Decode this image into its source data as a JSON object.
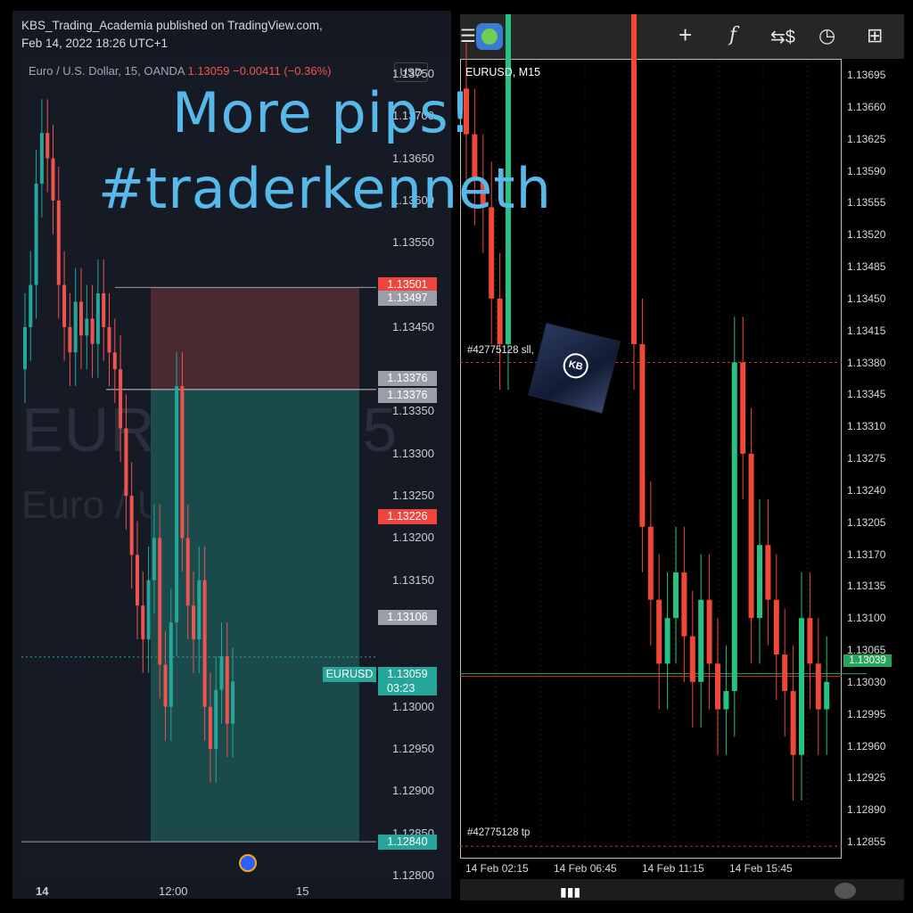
{
  "left_panel": {
    "header": {
      "line1": "KBS_Trading_Academia published on TradingView.com,",
      "line2": "Feb 14, 2022 18:26 UTC+1"
    },
    "symbol_line": {
      "name": "Euro / U.S. Dollar, 15, OANDA",
      "price": "1.13059",
      "change": "−0.00411 (−0.36%)"
    },
    "currency_button": "USD",
    "watermark": {
      "main": "EURUSD, 15",
      "sub": "Euro / U.S. Dollar"
    },
    "price_axis": [
      "1.13750",
      "1.13700",
      "1.13650",
      "1.13600",
      "1.13550",
      "1.13450",
      "1.13350",
      "1.13300",
      "1.13250",
      "1.13200",
      "1.13150",
      "1.13000",
      "1.12950",
      "1.12900",
      "1.12850",
      "1.12800"
    ],
    "price_tags": [
      {
        "label": "1.13501",
        "color": "#f0443f"
      },
      {
        "label": "1.13497",
        "color": "#9a9ea8"
      },
      {
        "label": "1.13376",
        "color": "#9a9ea8"
      },
      {
        "label": "1.13376",
        "color": "#9a9ea8"
      },
      {
        "label": "1.13226",
        "color": "#f0443f"
      },
      {
        "label": "1.13106",
        "color": "#9a9ea8"
      },
      {
        "label": "1.12840",
        "color": "#26a69a"
      }
    ],
    "current_tag": {
      "symbol": "EURUSD",
      "price": "1.13059",
      "countdown": "03:23"
    },
    "time_axis": [
      "14",
      "12:00",
      "15"
    ]
  },
  "overlay_text": {
    "line1": "More pips!",
    "line2": "#traderkenneth"
  },
  "right_panel": {
    "symbol": "EURUSD, M15",
    "price_axis": [
      "1.13695",
      "1.13660",
      "1.13625",
      "1.13590",
      "1.13555",
      "1.13520",
      "1.13485",
      "1.13450",
      "1.13415",
      "1.13380",
      "1.13345",
      "1.13310",
      "1.13275",
      "1.13240",
      "1.13205",
      "1.13170",
      "1.13135",
      "1.13100",
      "1.13065",
      "1.13030",
      "1.12995",
      "1.12960",
      "1.12925",
      "1.12890",
      "1.12855"
    ],
    "current_price": "1.13039",
    "order_lines": {
      "sl": "#42775128 sll,",
      "tp": "#42775128 tp"
    },
    "time_axis": [
      "14 Feb 02:15",
      "14 Feb 06:45",
      "14 Feb 11:15",
      "14 Feb 15:45"
    ],
    "toolbar_icons": [
      "menu-icon",
      "app-logo-icon",
      "crosshair-icon",
      "function-icon",
      "trade-icon",
      "clock-icon",
      "new-document-icon"
    ]
  },
  "chart_data": [
    {
      "type": "candlestick",
      "title": "Euro / U.S. Dollar, 15, OANDA",
      "ylim": [
        1.128,
        1.1377
      ],
      "position": {
        "type": "short",
        "entry": 1.13376,
        "stop": 1.13497,
        "target": 1.1284
      },
      "last_price": 1.13059,
      "colors": {
        "up": "#26a69a",
        "down": "#ef5350",
        "profit_zone": "#1a4a4a",
        "loss_zone": "#4a2a30"
      }
    },
    {
      "type": "candlestick",
      "title": "EURUSD, M15",
      "ylim": [
        1.1284,
        1.137
      ],
      "order": {
        "id": "#42775128",
        "sl": 1.1338,
        "tp": 1.1285
      },
      "last_price": 1.13039,
      "colors": {
        "up": "#26c281",
        "down": "#ef4836"
      }
    }
  ]
}
